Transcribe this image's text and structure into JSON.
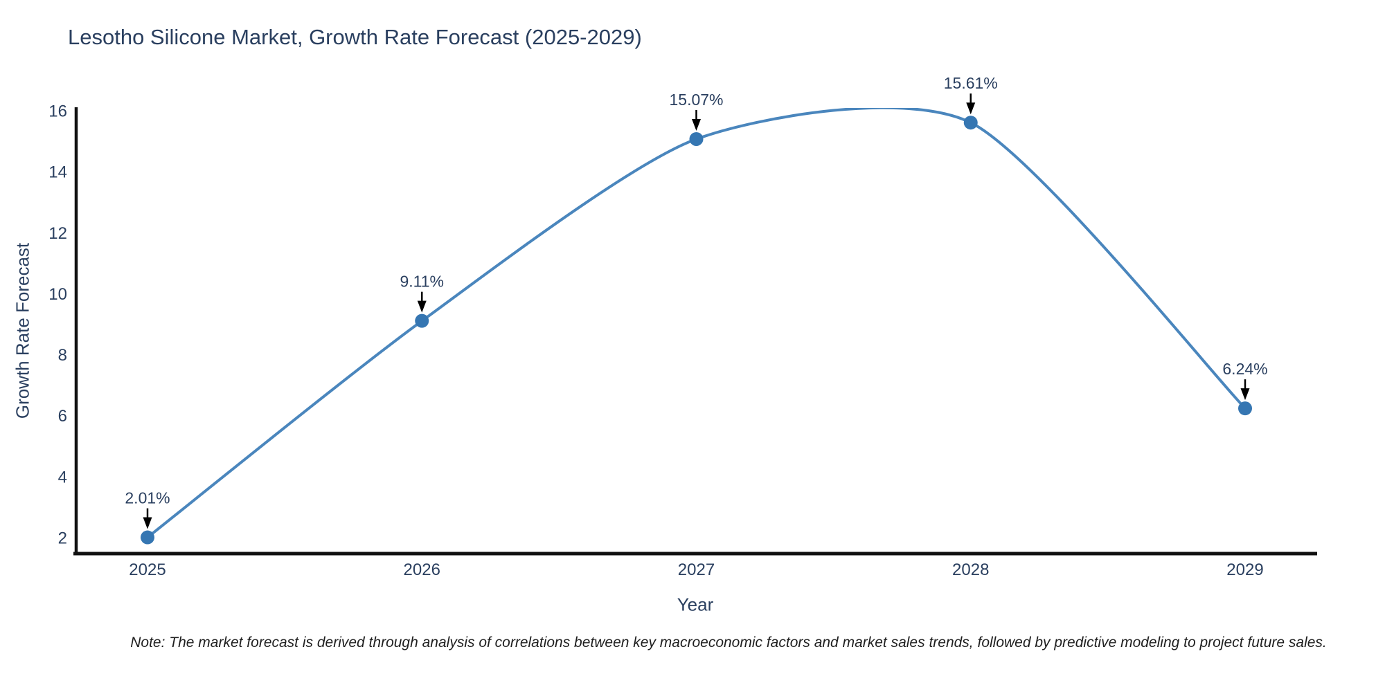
{
  "chart_data": {
    "type": "line",
    "title": "Lesotho Silicone Market, Growth Rate Forecast (2025-2029)",
    "xlabel": "Year",
    "ylabel": "Growth Rate Forecast",
    "categories": [
      "2025",
      "2026",
      "2027",
      "2028",
      "2029"
    ],
    "values": [
      2.01,
      9.11,
      15.07,
      15.61,
      6.24
    ],
    "point_labels": [
      "2.01%",
      "9.11%",
      "15.07%",
      "15.61%",
      "6.24%"
    ],
    "yticks": [
      2,
      4,
      6,
      8,
      10,
      12,
      14,
      16
    ],
    "ylim": [
      1.45,
      16
    ],
    "xlim_padding": "half category on each side",
    "line_shape": "spline",
    "grid": false,
    "legend": "none",
    "marker": "circle",
    "annotation_style": "value label with downward black arrow above each point",
    "clipping": "spline overshoots above y=16 between 2027 and 2028 and is clipped at plot top",
    "colors": {
      "line": "#4a86bd",
      "marker": "#3576b2",
      "axis": "#111111",
      "text": "#2a3f5f",
      "arrow": "#000000",
      "note_text": "#1f1f1f",
      "background": "#ffffff"
    },
    "note": "Note: The market forecast is derived through analysis of correlations between key macroeconomic factors and market sales trends, followed by predictive modeling to project future sales."
  }
}
